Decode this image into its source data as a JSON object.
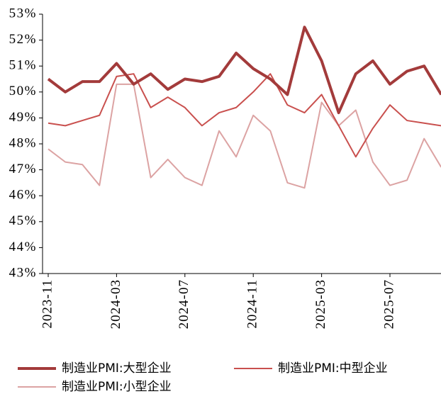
{
  "chart_data": {
    "type": "line",
    "categories": [
      "2023-11",
      null,
      null,
      null,
      "2024-03",
      null,
      null,
      null,
      "2024-07",
      null,
      null,
      null,
      "2024-11",
      null,
      null,
      null,
      "2025-03",
      null,
      null,
      null,
      "2025-07",
      null,
      null,
      null
    ],
    "series": [
      {
        "name": "制造业PMI:大型企业",
        "color": "#a33b3b",
        "width": 4,
        "values": [
          50.5,
          50.0,
          50.4,
          50.4,
          51.1,
          50.3,
          50.7,
          50.1,
          50.5,
          50.4,
          50.6,
          51.5,
          50.9,
          50.5,
          49.9,
          52.5,
          51.2,
          49.2,
          50.7,
          51.2,
          50.3,
          50.8,
          51.0,
          49.9
        ]
      },
      {
        "name": "制造业PMI:中型企业",
        "color": "#c9504e",
        "width": 2,
        "values": [
          48.8,
          48.7,
          48.9,
          49.1,
          50.6,
          50.7,
          49.4,
          49.8,
          49.4,
          48.7,
          49.2,
          49.4,
          50.0,
          50.7,
          49.5,
          49.2,
          49.9,
          48.7,
          47.5,
          48.6,
          49.5,
          48.9,
          48.8,
          48.7
        ]
      },
      {
        "name": "制造业PMI:小型企业",
        "color": "#dca3a3",
        "width": 2,
        "values": [
          47.8,
          47.3,
          47.2,
          46.4,
          50.3,
          50.3,
          46.7,
          47.4,
          46.7,
          46.4,
          48.5,
          47.5,
          49.1,
          48.5,
          46.5,
          46.3,
          49.6,
          48.7,
          49.3,
          47.3,
          46.4,
          46.6,
          48.2,
          47.1
        ]
      }
    ],
    "ylim": [
      43,
      53
    ],
    "yticks": [
      {
        "value": 43,
        "label": "43%"
      },
      {
        "value": 44,
        "label": "44%"
      },
      {
        "value": 45,
        "label": "45%"
      },
      {
        "value": 46,
        "label": "46%"
      },
      {
        "value": 47,
        "label": "47%"
      },
      {
        "value": 48,
        "label": "48%"
      },
      {
        "value": 49,
        "label": "49%"
      },
      {
        "value": 50,
        "label": "50%"
      },
      {
        "value": 51,
        "label": "51%"
      },
      {
        "value": 52,
        "label": "52%"
      },
      {
        "value": 53,
        "label": "53%"
      }
    ],
    "grid": false
  }
}
